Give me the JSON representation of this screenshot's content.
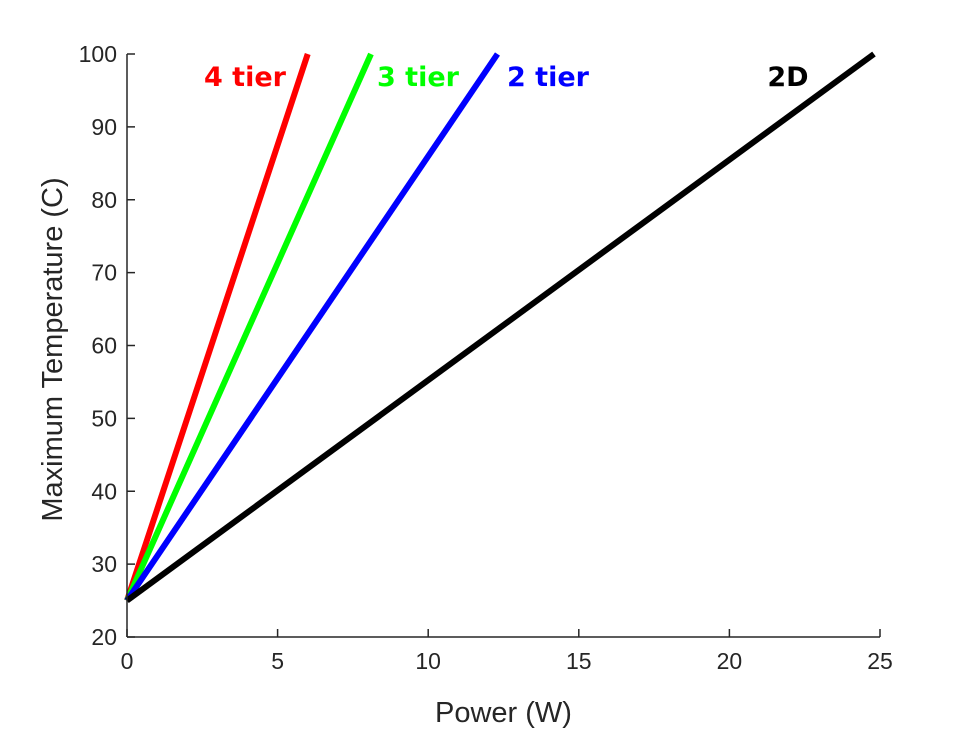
{
  "chart_data": {
    "type": "line",
    "title": "",
    "xlabel": "Power (W)",
    "ylabel": "Maximum Temperature (C)",
    "xlim": [
      0,
      25
    ],
    "ylim": [
      20,
      100
    ],
    "xticks": [
      0,
      5,
      10,
      15,
      20,
      25
    ],
    "yticks": [
      20,
      30,
      40,
      50,
      60,
      70,
      80,
      90,
      100
    ],
    "grid": false,
    "legend": "inline labels at top of each line",
    "series": [
      {
        "name": "4 tier",
        "color": "#ff0000",
        "x": [
          0,
          6
        ],
        "y": [
          25,
          100
        ]
      },
      {
        "name": "3 tier",
        "color": "#00ff00",
        "x": [
          0,
          8.1
        ],
        "y": [
          25,
          100
        ]
      },
      {
        "name": "2 tier",
        "color": "#0000ff",
        "x": [
          0,
          12.3
        ],
        "y": [
          25,
          100
        ]
      },
      {
        "name": "2D",
        "color": "#000000",
        "x": [
          0,
          24.8
        ],
        "y": [
          25,
          100
        ]
      }
    ]
  }
}
